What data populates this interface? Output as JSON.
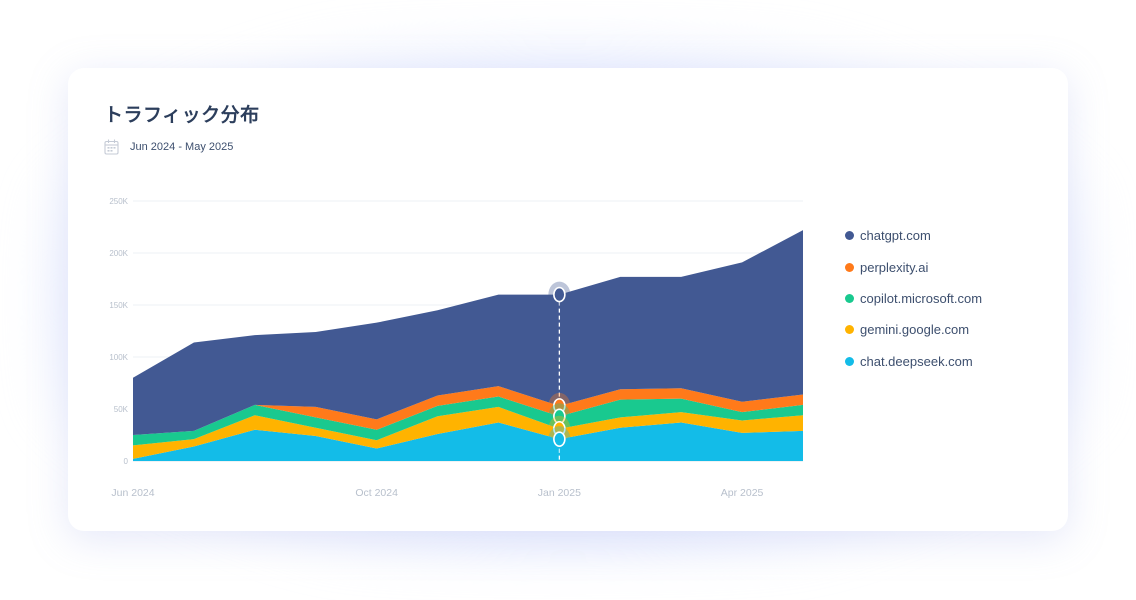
{
  "title": "トラフィック分布",
  "date_range": "Jun 2024 - May 2025",
  "icons": {
    "calendar": "calendar-icon"
  },
  "chart_data": {
    "type": "area",
    "stacked": true,
    "x": [
      "2024-06",
      "2024-07",
      "2024-08",
      "2024-09",
      "2024-10",
      "2024-11",
      "2024-12",
      "2025-01",
      "2025-02",
      "2025-03",
      "2025-04",
      "2025-05"
    ],
    "x_tick_labels": [
      "Jun 2024",
      "Oct 2024",
      "Jan 2025",
      "Apr 2025"
    ],
    "x_tick_positions": [
      "2024-06",
      "2024-10",
      "2025-01",
      "2025-04"
    ],
    "y_tick_labels": [
      "0",
      "50K",
      "100K",
      "150K",
      "200K",
      "250K"
    ],
    "y_tick_values": [
      0,
      50000,
      100000,
      150000,
      200000,
      250000
    ],
    "ylim": [
      0,
      250000
    ],
    "grid": true,
    "legend": "right",
    "hover_marker_x": "2025-01",
    "series": [
      {
        "name": "chat.deepseek.com",
        "color": "#13bce8",
        "values": [
          2000,
          14000,
          30000,
          24000,
          12000,
          26000,
          37000,
          21000,
          32000,
          37000,
          27000,
          29000
        ]
      },
      {
        "name": "gemini.google.com",
        "color": "#ffb300",
        "values": [
          13000,
          7000,
          14000,
          8000,
          8000,
          17000,
          15000,
          10000,
          10000,
          10000,
          12000,
          15000
        ]
      },
      {
        "name": "copilot.microsoft.com",
        "color": "#19c98f",
        "values": [
          10000,
          8000,
          10000,
          10000,
          10000,
          10000,
          10000,
          12000,
          17000,
          13000,
          8000,
          10000
        ]
      },
      {
        "name": "perplexity.ai",
        "color": "#ff7a1a",
        "values": [
          0,
          0,
          0,
          10000,
          10000,
          10000,
          10000,
          10000,
          10000,
          10000,
          10000,
          10000
        ]
      },
      {
        "name": "chatgpt.com",
        "color": "#425993",
        "values": [
          55000,
          85000,
          67000,
          72000,
          93000,
          82000,
          88000,
          107000,
          108000,
          107000,
          134000,
          158000
        ]
      }
    ]
  }
}
